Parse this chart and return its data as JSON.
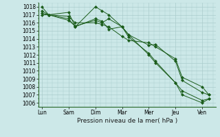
{
  "xlabel": "Pression niveau de la mer( hPa )",
  "background_color": "#cce8e8",
  "grid_color": "#aacccc",
  "line_color": "#1a5c1a",
  "marker_color": "#1a5c1a",
  "ylim": [
    1005.5,
    1018.5
  ],
  "yticks": [
    1006,
    1007,
    1008,
    1009,
    1010,
    1011,
    1012,
    1013,
    1014,
    1015,
    1016,
    1017,
    1018
  ],
  "xtick_labels": [
    "Lun",
    "Sam",
    "Dim",
    "Mar",
    "Mer",
    "Jeu",
    "Ven"
  ],
  "xtick_positions": [
    0,
    40,
    80,
    120,
    160,
    200,
    240
  ],
  "xlim": [
    -5,
    260
  ],
  "series": [
    {
      "x": [
        0,
        10,
        40,
        50,
        80,
        90,
        100,
        120,
        130,
        160,
        170,
        200,
        210,
        240,
        250
      ],
      "y": [
        1018.0,
        1017.0,
        1017.3,
        1015.5,
        1018.0,
        1017.5,
        1017.0,
        1015.5,
        1014.5,
        1012.0,
        1011.0,
        1008.5,
        1007.0,
        1006.0,
        1006.5
      ]
    },
    {
      "x": [
        0,
        10,
        40,
        50,
        80,
        90,
        100,
        120,
        130,
        160,
        170,
        200,
        210,
        240,
        250
      ],
      "y": [
        1017.2,
        1017.0,
        1016.5,
        1015.5,
        1016.5,
        1016.2,
        1015.2,
        1015.5,
        1014.2,
        1012.2,
        1011.2,
        1008.5,
        1007.5,
        1006.3,
        1006.5
      ]
    },
    {
      "x": [
        0,
        10,
        40,
        50,
        80,
        90,
        100,
        120,
        130,
        160,
        170,
        200,
        210,
        240,
        250
      ],
      "y": [
        1017.0,
        1017.0,
        1016.3,
        1015.6,
        1016.3,
        1016.0,
        1016.5,
        1015.5,
        1014.5,
        1013.2,
        1013.3,
        1011.2,
        1008.8,
        1007.3,
        1007.0
      ]
    },
    {
      "x": [
        0,
        10,
        40,
        50,
        80,
        90,
        100,
        120,
        130,
        160,
        170,
        200,
        210,
        240,
        250
      ],
      "y": [
        1017.5,
        1017.0,
        1016.8,
        1016.0,
        1016.0,
        1015.8,
        1015.5,
        1014.3,
        1013.8,
        1013.5,
        1013.0,
        1011.5,
        1009.2,
        1008.0,
        1007.0
      ]
    }
  ]
}
